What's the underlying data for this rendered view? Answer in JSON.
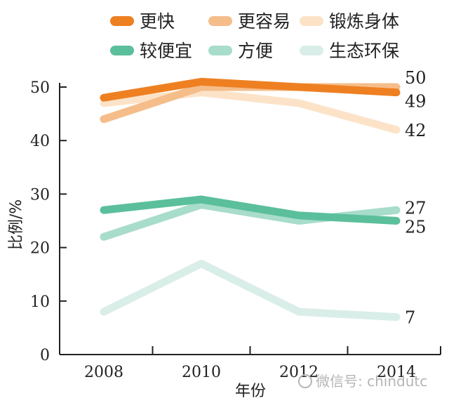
{
  "chart_data": {
    "type": "line",
    "x": [
      2008,
      2010,
      2012,
      2014
    ],
    "xlabel": "年份",
    "ylabel": "比例/%",
    "ylim": [
      0,
      50
    ],
    "yticks": [
      0,
      10,
      20,
      30,
      40,
      50
    ],
    "legend": "top",
    "grid": false,
    "series": [
      {
        "name": "锻炼身体",
        "color": "#fce3c8",
        "values": [
          47,
          49,
          47,
          42
        ],
        "end_label": "42"
      },
      {
        "name": "生态环保",
        "color": "#d9eee8",
        "values": [
          8,
          17,
          8,
          7
        ],
        "end_label": "7"
      },
      {
        "name": "方便",
        "color": "#a8dccb",
        "values": [
          22,
          28,
          25,
          27
        ],
        "end_label": "27"
      },
      {
        "name": "更容易",
        "color": "#f5bd8a",
        "values": [
          44,
          50,
          50,
          50
        ],
        "end_label": "50"
      },
      {
        "name": "较便宜",
        "color": "#5bbf9c",
        "values": [
          27,
          29,
          26,
          25
        ],
        "end_label": "25"
      },
      {
        "name": "更快",
        "color": "#ee8022",
        "values": [
          48,
          51,
          50,
          49
        ],
        "end_label": "49"
      }
    ]
  },
  "watermark": "微信号: chindutc"
}
